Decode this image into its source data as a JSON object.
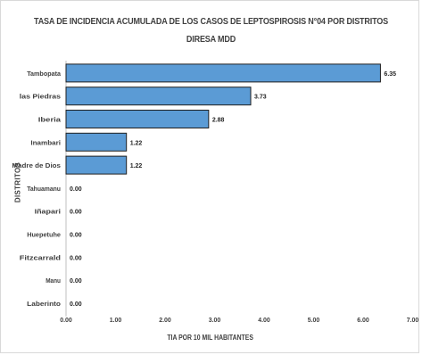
{
  "chart_data": {
    "type": "bar",
    "orientation": "horizontal",
    "title": "TASA DE INCIDENCIA ACUMULADA DE LOS CASOS DE LEPTOSPIROSIS N°04 POR DISTRITOS",
    "subtitle": "DIRESA MDD",
    "xlabel": "TIA POR 10 MIL HABITANTES",
    "ylabel": "DISTRITOS",
    "categories": [
      "Tambopata",
      "las Piedras",
      "Iberia",
      "Inambari",
      "Madre de Dios",
      "Tahuamanu",
      "Iñapari",
      "Huepetuhe",
      "Fitzcarrald",
      "Manu",
      "Laberinto"
    ],
    "values": [
      6.35,
      3.73,
      2.88,
      1.22,
      1.22,
      0.0,
      0.0,
      0.0,
      0.0,
      0.0,
      0.0
    ],
    "data_labels": [
      "6.35",
      "3.73",
      "2.88",
      "1.22",
      "1.22",
      "0.00",
      "0.00",
      "0.00",
      "0.00",
      "0.00",
      "0.00"
    ],
    "xlim": [
      0,
      7
    ],
    "x_ticks": [
      "0.00",
      "1.00",
      "2.00",
      "3.00",
      "4.00",
      "5.00",
      "6.00",
      "7.00"
    ],
    "grid": false,
    "legend": "none",
    "bar_color": "#5b9bd5",
    "bar_edge_color": "#1f1f1f"
  }
}
